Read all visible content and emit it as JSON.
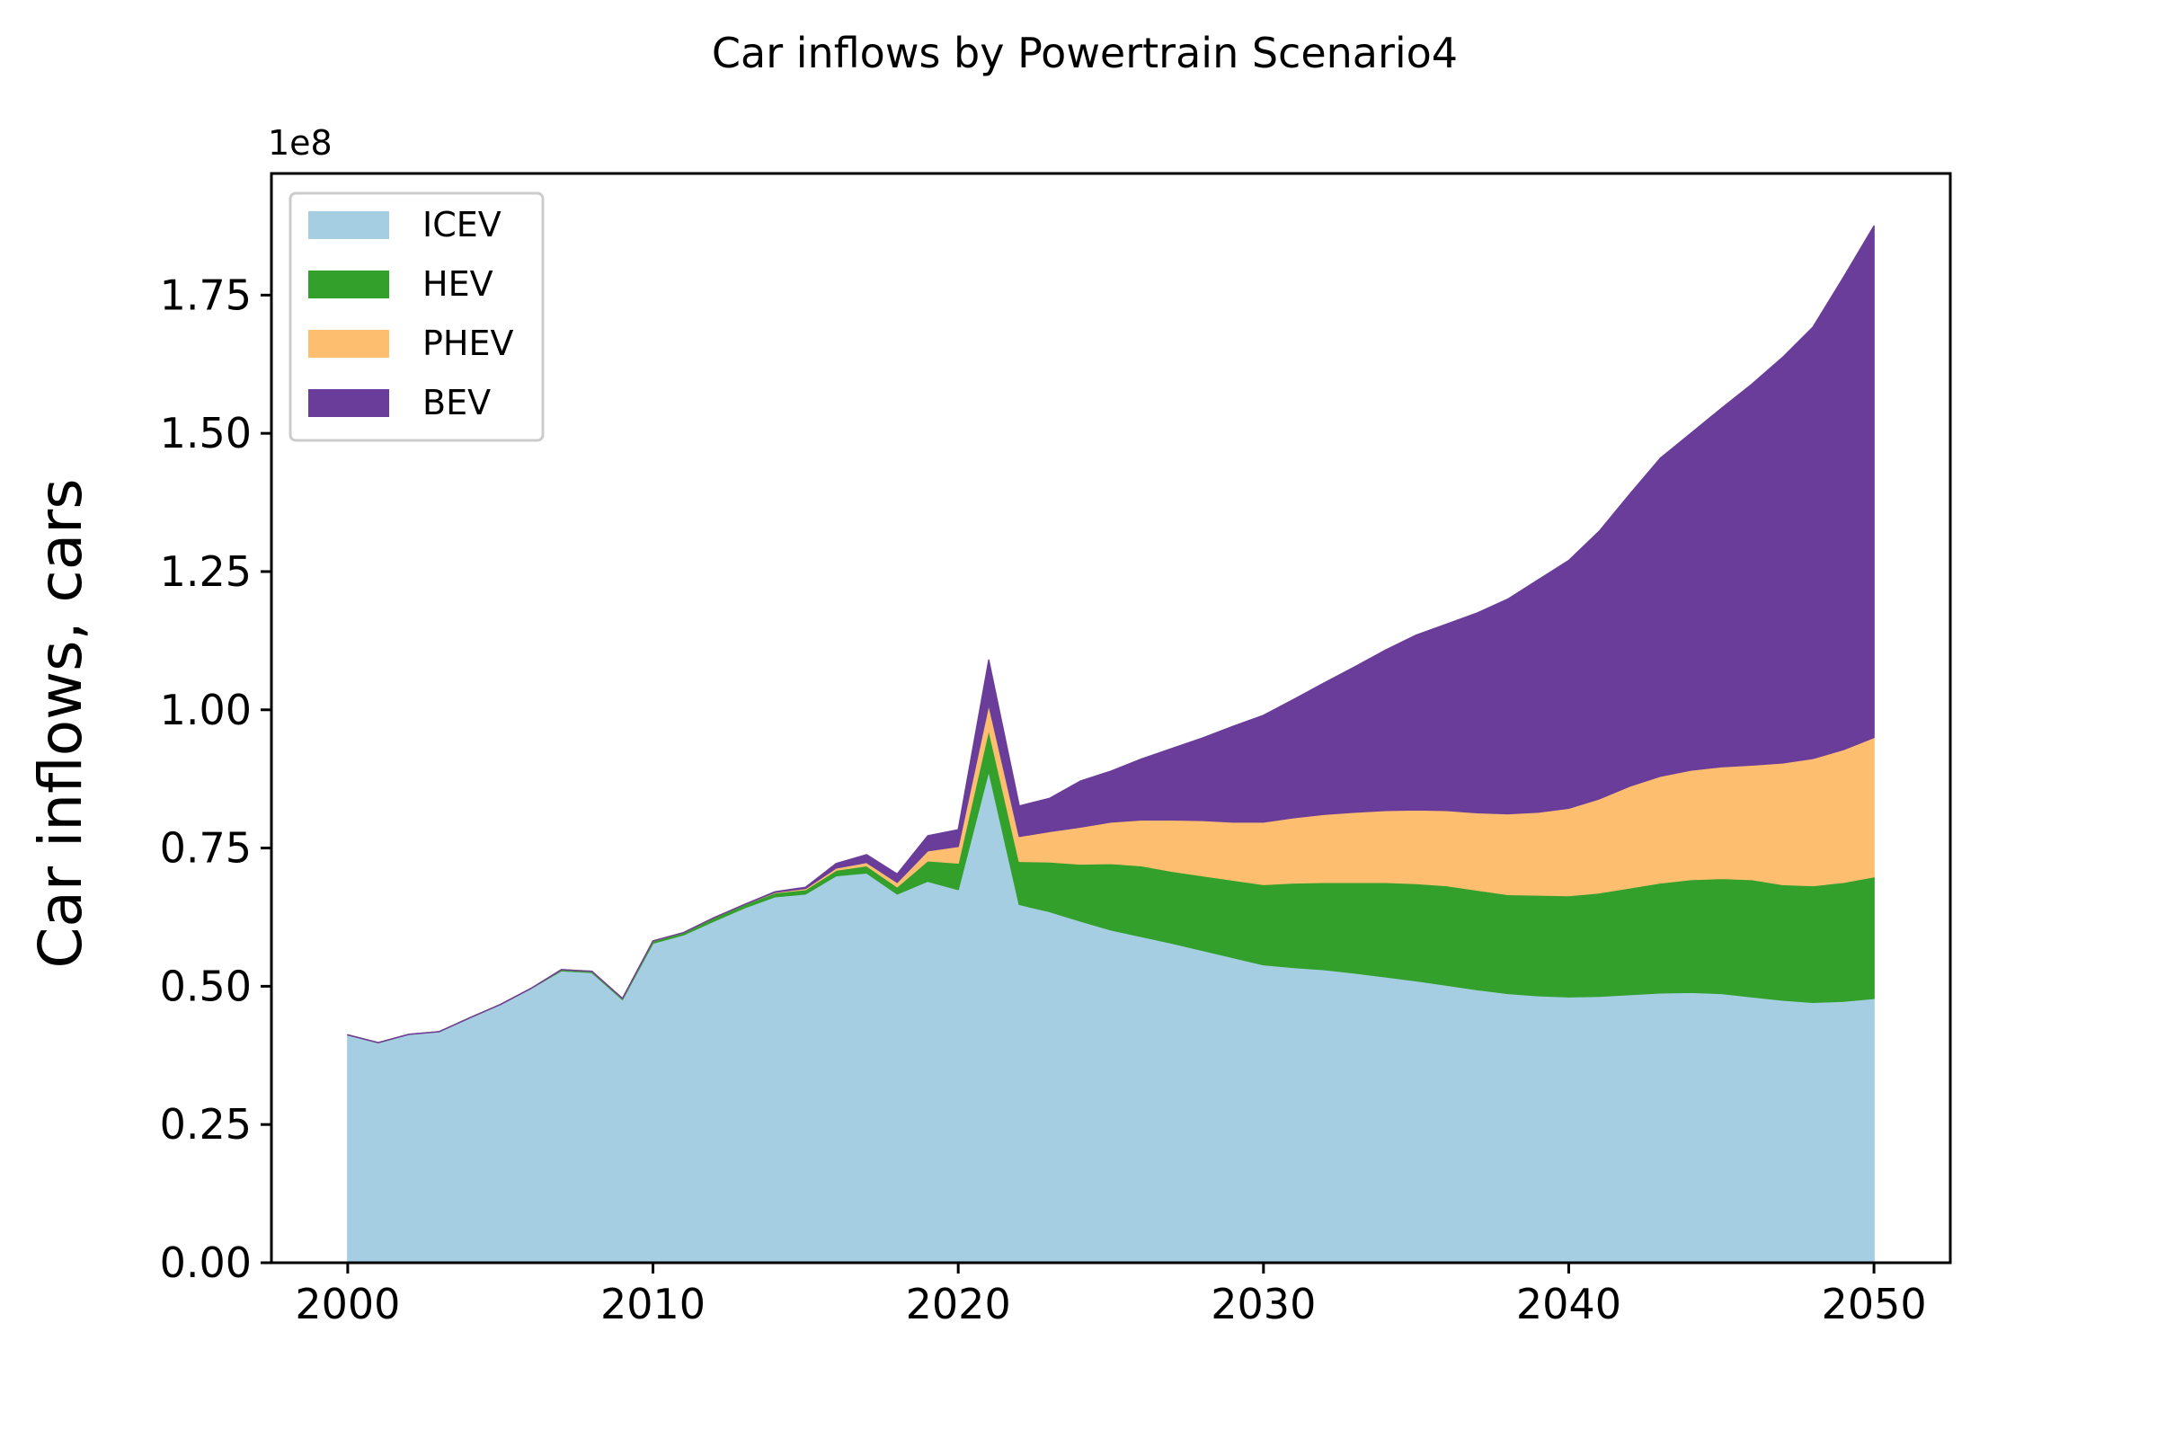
{
  "chart_data": {
    "type": "area",
    "stacked": true,
    "title": "Car inflows by Powertrain Scenario4",
    "xlabel": "",
    "ylabel": "Car inflows, cars",
    "y_multiplier_label": "1e8",
    "y_multiplier": 100000000,
    "xlim": [
      1997.5,
      2052.5
    ],
    "ylim": [
      0,
      1.97
    ],
    "x_ticks": [
      2000,
      2010,
      2020,
      2030,
      2040,
      2050
    ],
    "x_tick_labels": [
      "2000",
      "2010",
      "2020",
      "2030",
      "2040",
      "2050"
    ],
    "y_ticks": [
      0,
      0.25,
      0.5,
      0.75,
      1.0,
      1.25,
      1.5,
      1.75
    ],
    "y_tick_labels": [
      "0.00",
      "0.25",
      "0.50",
      "0.75",
      "1.00",
      "1.25",
      "1.50",
      "1.75"
    ],
    "grid": false,
    "legend_position": "top-left",
    "x": [
      2000,
      2001,
      2002,
      2003,
      2004,
      2005,
      2006,
      2007,
      2008,
      2009,
      2010,
      2011,
      2012,
      2013,
      2014,
      2015,
      2016,
      2017,
      2018,
      2019,
      2020,
      2021,
      2022,
      2023,
      2024,
      2025,
      2026,
      2027,
      2028,
      2029,
      2030,
      2031,
      2032,
      2033,
      2034,
      2035,
      2036,
      2037,
      2038,
      2039,
      2040,
      2041,
      2042,
      2043,
      2044,
      2045,
      2046,
      2047,
      2048,
      2049,
      2050
    ],
    "series": [
      {
        "name": "ICEV",
        "color": "#a6cee3",
        "values": [
          0.412,
          0.398,
          0.413,
          0.418,
          0.443,
          0.467,
          0.496,
          0.528,
          0.525,
          0.476,
          0.578,
          0.593,
          0.618,
          0.642,
          0.662,
          0.667,
          0.7,
          0.705,
          0.667,
          0.69,
          0.675,
          0.89,
          0.648,
          0.635,
          0.618,
          0.602,
          0.59,
          0.578,
          0.565,
          0.552,
          0.539,
          0.534,
          0.53,
          0.524,
          0.517,
          0.51,
          0.502,
          0.494,
          0.487,
          0.483,
          0.481,
          0.482,
          0.485,
          0.488,
          0.489,
          0.487,
          0.481,
          0.475,
          0.471,
          0.473,
          0.478
        ]
      },
      {
        "name": "HEV",
        "color": "#33a02c",
        "values": [
          0.0,
          0.0,
          0.0,
          0.0,
          0.0,
          0.0,
          0.0,
          0.002,
          0.002,
          0.002,
          0.004,
          0.004,
          0.006,
          0.006,
          0.007,
          0.008,
          0.01,
          0.013,
          0.013,
          0.037,
          0.048,
          0.075,
          0.078,
          0.09,
          0.103,
          0.12,
          0.128,
          0.13,
          0.135,
          0.14,
          0.145,
          0.153,
          0.158,
          0.164,
          0.171,
          0.176,
          0.18,
          0.18,
          0.179,
          0.182,
          0.183,
          0.187,
          0.193,
          0.199,
          0.204,
          0.208,
          0.212,
          0.209,
          0.211,
          0.215,
          0.22
        ]
      },
      {
        "name": "PHEV",
        "color": "#fdbf6f",
        "values": [
          0.0,
          0.0,
          0.0,
          0.0,
          0.0,
          0.0,
          0.0,
          0.0,
          0.0,
          0.0,
          0.0,
          0.0,
          0.0,
          0.0,
          0.001,
          0.002,
          0.004,
          0.006,
          0.008,
          0.018,
          0.03,
          0.045,
          0.045,
          0.055,
          0.067,
          0.075,
          0.083,
          0.093,
          0.1,
          0.105,
          0.113,
          0.118,
          0.123,
          0.127,
          0.13,
          0.133,
          0.136,
          0.14,
          0.146,
          0.15,
          0.158,
          0.17,
          0.184,
          0.193,
          0.198,
          0.202,
          0.207,
          0.22,
          0.23,
          0.24,
          0.252
        ]
      },
      {
        "name": "BEV",
        "color": "#6a3d9a",
        "values": [
          0.0,
          0.0,
          0.0,
          0.0,
          0.0,
          0.0,
          0.0,
          0.0,
          0.0,
          0.0,
          0.0,
          0.0,
          0.0,
          0.0,
          0.001,
          0.002,
          0.008,
          0.014,
          0.015,
          0.027,
          0.03,
          0.08,
          0.055,
          0.06,
          0.083,
          0.092,
          0.11,
          0.129,
          0.149,
          0.173,
          0.193,
          0.214,
          0.238,
          0.263,
          0.29,
          0.316,
          0.337,
          0.361,
          0.388,
          0.42,
          0.448,
          0.484,
          0.528,
          0.575,
          0.609,
          0.648,
          0.689,
          0.733,
          0.78,
          0.854,
          0.925
        ]
      }
    ]
  }
}
